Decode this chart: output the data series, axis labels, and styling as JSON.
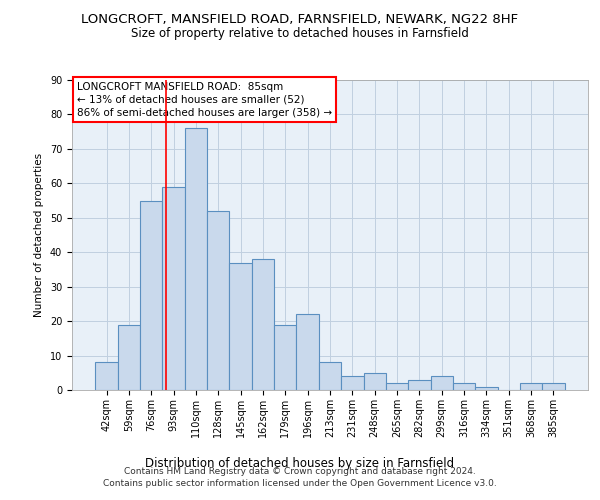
{
  "title1": "LONGCROFT, MANSFIELD ROAD, FARNSFIELD, NEWARK, NG22 8HF",
  "title2": "Size of property relative to detached houses in Farnsfield",
  "xlabel": "Distribution of detached houses by size in Farnsfield",
  "ylabel": "Number of detached properties",
  "categories": [
    "42sqm",
    "59sqm",
    "76sqm",
    "93sqm",
    "110sqm",
    "128sqm",
    "145sqm",
    "162sqm",
    "179sqm",
    "196sqm",
    "213sqm",
    "231sqm",
    "248sqm",
    "265sqm",
    "282sqm",
    "299sqm",
    "316sqm",
    "334sqm",
    "351sqm",
    "368sqm",
    "385sqm"
  ],
  "values": [
    8,
    19,
    55,
    59,
    76,
    52,
    37,
    38,
    19,
    22,
    8,
    4,
    5,
    2,
    3,
    4,
    2,
    1,
    0,
    2,
    2
  ],
  "bar_color": "#c9d9ec",
  "bar_edge_color": "#5a8fc0",
  "bar_edge_width": 0.8,
  "red_line_x": 2.65,
  "annotation_line1": "LONGCROFT MANSFIELD ROAD:  85sqm",
  "annotation_line2": "← 13% of detached houses are smaller (52)",
  "annotation_line3": "86% of semi-detached houses are larger (358) →",
  "ylim": [
    0,
    90
  ],
  "yticks": [
    0,
    10,
    20,
    30,
    40,
    50,
    60,
    70,
    80,
    90
  ],
  "grid_color": "#c0cfe0",
  "bg_color": "#e8f0f8",
  "footer1": "Contains HM Land Registry data © Crown copyright and database right 2024.",
  "footer2": "Contains public sector information licensed under the Open Government Licence v3.0.",
  "title1_fontsize": 9.5,
  "title2_fontsize": 8.5,
  "xlabel_fontsize": 8.5,
  "ylabel_fontsize": 7.5,
  "tick_fontsize": 7,
  "annotation_fontsize": 7.5,
  "footer_fontsize": 6.5
}
